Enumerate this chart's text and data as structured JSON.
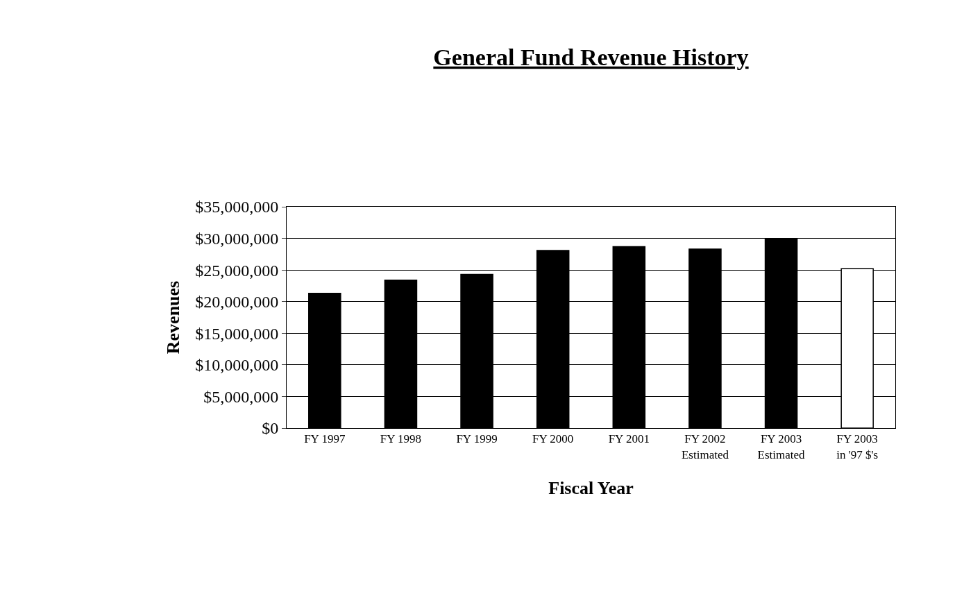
{
  "chart_data": {
    "type": "bar",
    "title": "General Fund Revenue History",
    "xlabel": "Fiscal Year",
    "ylabel": "Revenues",
    "categories": [
      "FY 1997",
      "FY 1998",
      "FY 1999",
      "FY 2000",
      "FY 2001",
      "FY 2002\nEstimated",
      "FY 2003\nEstimated",
      "FY 2003\nin '97 $'s"
    ],
    "values": [
      21300000,
      23400000,
      24300000,
      28100000,
      28700000,
      28300000,
      29900000,
      25200000
    ],
    "colors": [
      "#000000",
      "#000000",
      "#000000",
      "#000000",
      "#000000",
      "#000000",
      "#000000",
      "#ffffff"
    ],
    "ylim": [
      0,
      35000000
    ],
    "yticks": [
      {
        "value": 0,
        "label": "$0"
      },
      {
        "value": 5000000,
        "label": "$5,000,000"
      },
      {
        "value": 10000000,
        "label": "$10,000,000"
      },
      {
        "value": 15000000,
        "label": "$15,000,000"
      },
      {
        "value": 20000000,
        "label": "$20,000,000"
      },
      {
        "value": 25000000,
        "label": "$25,000,000"
      },
      {
        "value": 30000000,
        "label": "$30,000,000"
      },
      {
        "value": 35000000,
        "label": "$35,000,000"
      }
    ],
    "grid": "y"
  }
}
